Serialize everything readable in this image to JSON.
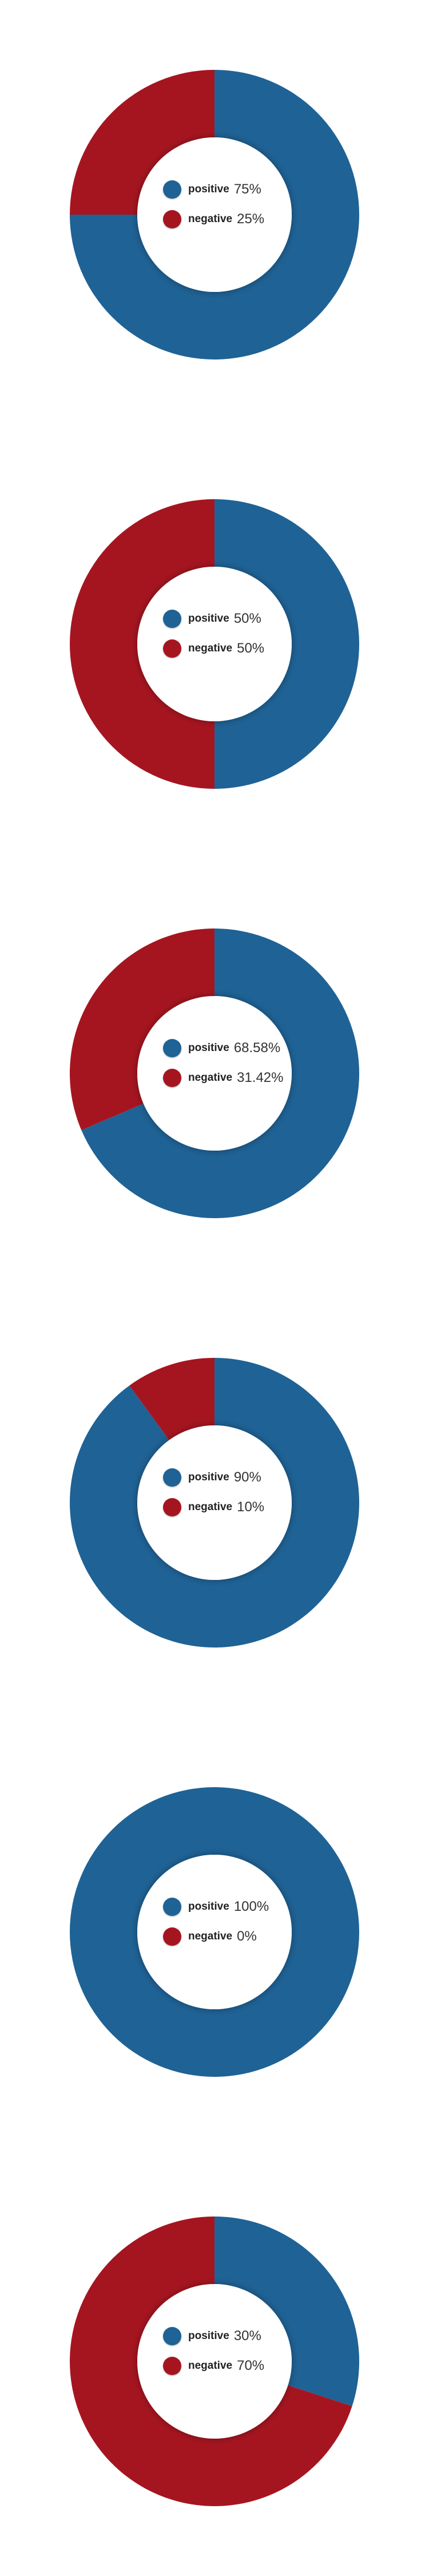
{
  "colors": {
    "positive": "#1f6295",
    "negative": "#a51520"
  },
  "chart_data": [
    {
      "type": "pie",
      "categories": [
        "positive",
        "negative"
      ],
      "values": [
        75,
        25
      ],
      "value_labels": [
        "75%",
        "25%"
      ],
      "legend": {
        "entries": [
          "positive",
          "negative"
        ],
        "placement": "center"
      }
    },
    {
      "type": "pie",
      "categories": [
        "positive",
        "negative"
      ],
      "values": [
        50,
        50
      ],
      "value_labels": [
        "50%",
        "50%"
      ],
      "legend": {
        "entries": [
          "positive",
          "negative"
        ],
        "placement": "center"
      }
    },
    {
      "type": "pie",
      "categories": [
        "positive",
        "negative"
      ],
      "values": [
        68.58,
        31.42
      ],
      "value_labels": [
        "68.58%",
        "31.42%"
      ],
      "legend": {
        "entries": [
          "positive",
          "negative"
        ],
        "placement": "center"
      }
    },
    {
      "type": "pie",
      "categories": [
        "positive",
        "negative"
      ],
      "values": [
        90,
        10
      ],
      "value_labels": [
        "90%",
        "10%"
      ],
      "legend": {
        "entries": [
          "positive",
          "negative"
        ],
        "placement": "center"
      }
    },
    {
      "type": "pie",
      "categories": [
        "positive",
        "negative"
      ],
      "values": [
        100,
        0
      ],
      "value_labels": [
        "100%",
        "0%"
      ],
      "legend": {
        "entries": [
          "positive",
          "negative"
        ],
        "placement": "center"
      }
    },
    {
      "type": "pie",
      "categories": [
        "positive",
        "negative"
      ],
      "values": [
        30,
        70
      ],
      "value_labels": [
        "30%",
        "70%"
      ],
      "legend": {
        "entries": [
          "positive",
          "negative"
        ],
        "placement": "center"
      }
    }
  ]
}
